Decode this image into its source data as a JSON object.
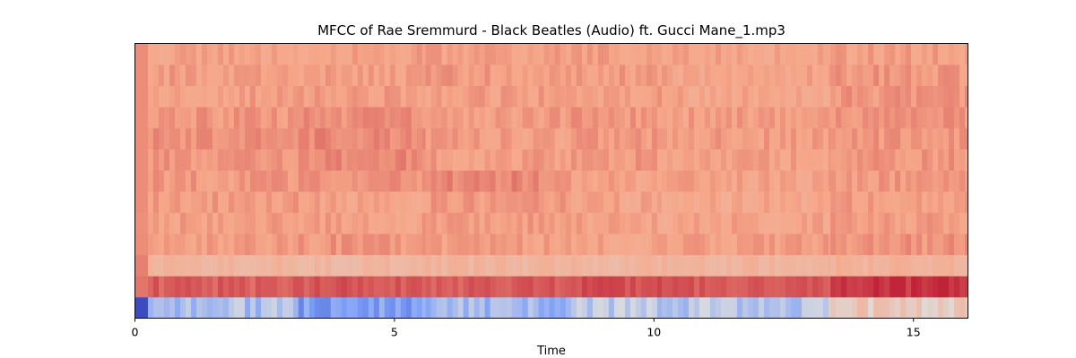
{
  "chart_data": {
    "type": "heatmap",
    "title": "MFCC of Rae Sremmurd - Black Beatles (Audio) ft. Gucci Mane_1.mp3",
    "xlabel": "Time",
    "ylabel": "",
    "xlim": [
      0,
      16.05
    ],
    "x_ticks": [
      0,
      5,
      10,
      15
    ],
    "y_ticks": [],
    "colormap": "coolwarm",
    "n_coefficients": 13,
    "grid": false,
    "legend": "none",
    "segments_time": [
      0,
      0.25,
      3.15,
      5.6,
      8.3,
      10.15,
      13.4,
      16.05
    ],
    "rows": [
      {
        "coefficient": 0,
        "values": [
          -1.0,
          -0.25,
          -0.5,
          -0.3,
          -0.15,
          -0.2,
          0.2
        ]
      },
      {
        "coefficient": 1,
        "values": [
          0.65,
          0.72,
          0.75,
          0.73,
          0.78,
          0.74,
          0.85
        ]
      },
      {
        "coefficient": 2,
        "values": [
          0.62,
          0.38,
          0.36,
          0.37,
          0.37,
          0.38,
          0.4
        ]
      },
      {
        "coefficient": 3,
        "values": [
          0.58,
          0.53,
          0.55,
          0.52,
          0.5,
          0.52,
          0.56
        ]
      },
      {
        "coefficient": 4,
        "values": [
          0.57,
          0.52,
          0.52,
          0.53,
          0.51,
          0.5,
          0.53
        ]
      },
      {
        "coefficient": 5,
        "values": [
          0.58,
          0.54,
          0.5,
          0.55,
          0.5,
          0.48,
          0.53
        ]
      },
      {
        "coefficient": 6,
        "values": [
          0.58,
          0.55,
          0.56,
          0.6,
          0.52,
          0.5,
          0.54
        ]
      },
      {
        "coefficient": 7,
        "values": [
          0.58,
          0.55,
          0.6,
          0.53,
          0.54,
          0.52,
          0.55
        ]
      },
      {
        "coefficient": 8,
        "values": [
          0.58,
          0.57,
          0.6,
          0.52,
          0.55,
          0.53,
          0.55
        ]
      },
      {
        "coefficient": 9,
        "values": [
          0.58,
          0.55,
          0.57,
          0.54,
          0.55,
          0.52,
          0.56
        ]
      },
      {
        "coefficient": 10,
        "values": [
          0.58,
          0.52,
          0.54,
          0.52,
          0.52,
          0.5,
          0.55
        ]
      },
      {
        "coefficient": 11,
        "values": [
          0.58,
          0.53,
          0.52,
          0.54,
          0.53,
          0.5,
          0.55
        ]
      },
      {
        "coefficient": 12,
        "values": [
          0.58,
          0.5,
          0.52,
          0.52,
          0.52,
          0.5,
          0.52
        ]
      }
    ]
  }
}
